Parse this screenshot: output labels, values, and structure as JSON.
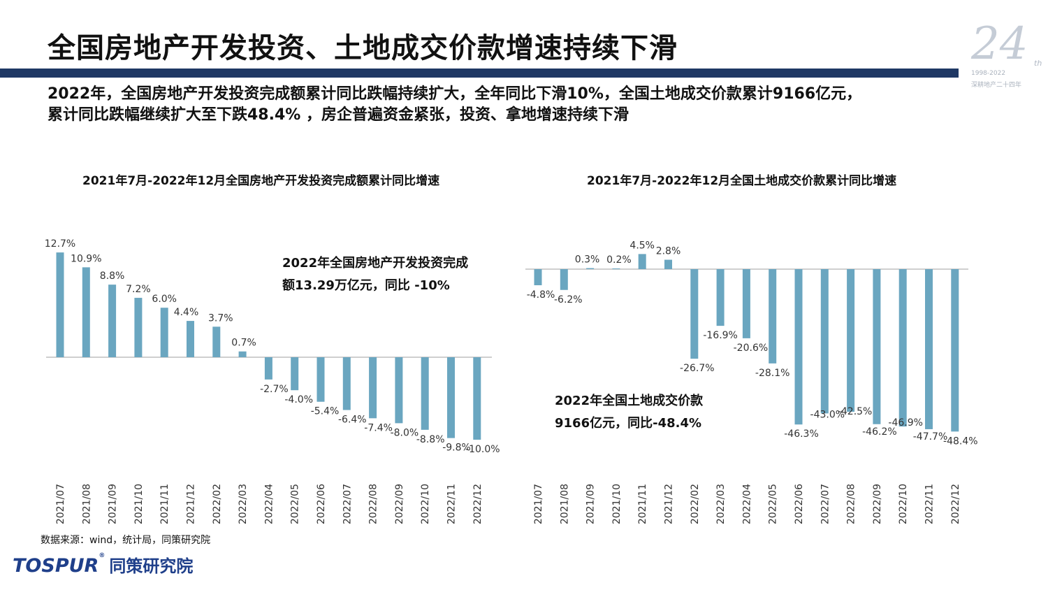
{
  "header": {
    "title": "全国房地产开发投资、土地成交价款增速持续下滑",
    "subtitle_line1": "2022年，全国房地产开发投资完成额累计同比跌幅持续扩大，全年同比下滑10%，全国土地成交价款累计9166亿元，",
    "subtitle_line2": "累计同比跌幅继续扩大至下跌48.4% ，房企普遍资金紧张，投资、拿地增速持续下滑"
  },
  "logo": {
    "number": "24",
    "suffix": "th",
    "years": "1998-2022",
    "slogan": "深耕地产二十四年"
  },
  "colors": {
    "bar": "#6aa6c0",
    "title_bar": "#1f3864",
    "brand": "#1f3f8a"
  },
  "annotations": {
    "left_line1": "2022年全国房地产开发投资完成",
    "left_line2": "额13.29万亿元，同比 -10%",
    "right_line1": "2022年全国土地成交价款",
    "right_line2": "9166亿元，同比-48.4%"
  },
  "footer": {
    "source": "数据来源：wind，统计局，同策研究院",
    "brand_en": "TOSPUR",
    "brand_reg": "®",
    "brand_cn": "同策研究院"
  },
  "chart_data": [
    {
      "type": "bar",
      "title": "2021年7月-2022年12月全国房地产开发投资完成额累计同比增速",
      "categories": [
        "2021/07",
        "2021/08",
        "2021/09",
        "2021/10",
        "2021/11",
        "2021/12",
        "2022/02",
        "2022/03",
        "2022/04",
        "2022/05",
        "2022/06",
        "2022/07",
        "2022/08",
        "2022/09",
        "2022/10",
        "2022/11",
        "2022/12"
      ],
      "values": [
        12.7,
        10.9,
        8.8,
        7.2,
        6.0,
        4.4,
        3.7,
        0.7,
        -2.7,
        -4.0,
        -5.4,
        -6.4,
        -7.4,
        -8.0,
        -8.8,
        -9.8,
        -10.0
      ],
      "labels": [
        "12.7%",
        "10.9%",
        "8.8%",
        "7.2%",
        "6.0%",
        "4.4%",
        "3.7%",
        "0.7%",
        "-2.7%",
        "-4.0%",
        "-5.4%",
        "-6.4%",
        "-7.4%",
        "-8.0%",
        "-8.8%",
        "-9.8%",
        "-10.0%"
      ],
      "unit": "%",
      "grid": false,
      "legend": "none"
    },
    {
      "type": "bar",
      "title": "2021年7月-2022年12月全国土地成交价款累计同比增速",
      "categories": [
        "2021/07",
        "2021/08",
        "2021/09",
        "2021/10",
        "2021/11",
        "2021/12",
        "2022/02",
        "2022/03",
        "2022/04",
        "2022/05",
        "2022/06",
        "2022/07",
        "2022/08",
        "2022/09",
        "2022/10",
        "2022/11",
        "2022/12"
      ],
      "values": [
        -4.8,
        -6.2,
        0.3,
        0.2,
        4.5,
        2.8,
        -26.7,
        -16.9,
        -20.6,
        -28.1,
        -46.3,
        -43.0,
        -42.5,
        -46.2,
        -46.9,
        -47.7,
        -48.4
      ],
      "labels": [
        "-4.8%",
        "-6.2%",
        "0.3%",
        "0.2%",
        "4.5%",
        "2.8%",
        "-26.7%",
        "-16.9%",
        "-20.6%",
        "-28.1%",
        "-46.3%",
        "-43.0%",
        "-42.5%",
        "-46.2%",
        "-46.9%",
        "-47.7%",
        "-48.4%"
      ],
      "unit": "%",
      "grid": false,
      "legend": "none"
    }
  ]
}
